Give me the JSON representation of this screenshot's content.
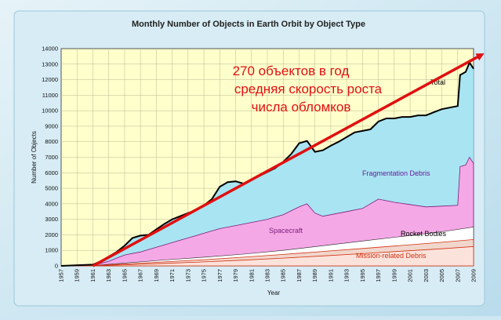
{
  "chart_data": {
    "type": "area",
    "title": "Monthly Number of Objects in Earth Orbit by Object Type",
    "xlabel": "Year",
    "ylabel": "Number of Objects",
    "xlim": [
      1957,
      2009
    ],
    "ylim": [
      0,
      14000
    ],
    "x_ticks": [
      "1957",
      "1959",
      "1961",
      "1963",
      "1965",
      "1967",
      "1969",
      "1971",
      "1973",
      "1975",
      "1977",
      "1979",
      "1981",
      "1983",
      "1985",
      "1987",
      "1989",
      "1991",
      "1993",
      "1995",
      "1997",
      "1999",
      "2001",
      "2003",
      "2005",
      "2007",
      "2009"
    ],
    "y_ticks": [
      "0",
      "1000",
      "2000",
      "3000",
      "4000",
      "5000",
      "6000",
      "7000",
      "8000",
      "9000",
      "10000",
      "11000",
      "12000",
      "13000",
      "14000"
    ],
    "grid": true,
    "colors": {
      "total": "#000000",
      "fragmentation": "#a8e4f2",
      "spacecraft": "#f4a8e6",
      "rocket_bodies": "#ffffff",
      "mission_debris": "#f1d6cc",
      "trend": "#e01010",
      "plot_bg": "#ffffcc"
    },
    "series": [
      {
        "name": "Total",
        "x": [
          1957,
          1961,
          1962,
          1963,
          1964,
          1965,
          1966,
          1967,
          1968,
          1969,
          1970,
          1971,
          1972,
          1973,
          1974,
          1975,
          1976,
          1977,
          1978,
          1979,
          1980,
          1981,
          1982,
          1983,
          1984,
          1985,
          1986,
          1987,
          1988,
          1989,
          1990,
          1991,
          1992,
          1993,
          1994,
          1995,
          1996,
          1997,
          1998,
          1999,
          2000,
          2001,
          2002,
          2003,
          2004,
          2005,
          2006,
          2007,
          2007.3,
          2008,
          2008.5,
          2009
        ],
        "values": [
          0,
          80,
          300,
          600,
          900,
          1300,
          1800,
          1950,
          2000,
          2350,
          2700,
          3000,
          3200,
          3400,
          3600,
          3900,
          4300,
          5100,
          5400,
          5450,
          5300,
          5550,
          5800,
          6050,
          6300,
          6700,
          7200,
          7900,
          8050,
          7350,
          7450,
          7750,
          8000,
          8300,
          8600,
          8700,
          8800,
          9300,
          9500,
          9500,
          9600,
          9600,
          9700,
          9700,
          9900,
          10100,
          10200,
          10300,
          12300,
          12500,
          13100,
          12700
        ]
      },
      {
        "name": "Fragmentation Debris",
        "x": [
          1957,
          1961,
          1963,
          1965,
          1967,
          1969,
          1971,
          1973,
          1975,
          1977,
          1979,
          1981,
          1983,
          1985,
          1987,
          1988,
          1989,
          1990,
          1993,
          1995,
          1997,
          1999,
          2001,
          2003,
          2005,
          2007,
          2007.3,
          2008,
          2008.5,
          2009
        ],
        "values": [
          0,
          30,
          300,
          700,
          900,
          1200,
          1500,
          1800,
          2100,
          2400,
          2600,
          2800,
          3000,
          3300,
          3800,
          4000,
          3400,
          3200,
          3500,
          3700,
          4300,
          4100,
          3950,
          3800,
          3850,
          3900,
          6400,
          6500,
          7000,
          6600
        ]
      },
      {
        "name": "Spacecraft",
        "x": [
          1957,
          1961,
          1965,
          1970,
          1975,
          1980,
          1985,
          1990,
          1995,
          2000,
          2005,
          2009
        ],
        "values": [
          0,
          20,
          180,
          380,
          560,
          760,
          1000,
          1300,
          1600,
          1900,
          2200,
          2500
        ]
      },
      {
        "name": "Rocket Bodies",
        "x": [
          1957,
          1961,
          1965,
          1970,
          1975,
          1980,
          1985,
          1990,
          1995,
          2000,
          2005,
          2009
        ],
        "values": [
          0,
          10,
          120,
          260,
          400,
          560,
          740,
          930,
          1120,
          1320,
          1520,
          1700
        ]
      },
      {
        "name": "Mission-related Debris",
        "x": [
          1957,
          1961,
          1965,
          1970,
          1975,
          1980,
          1985,
          1990,
          1995,
          2000,
          2005,
          2009
        ],
        "values": [
          0,
          5,
          70,
          160,
          260,
          370,
          500,
          640,
          790,
          950,
          1100,
          1250
        ]
      }
    ],
    "trend_line": {
      "x": [
        1961,
        2010
      ],
      "values": [
        0,
        13600
      ]
    },
    "annotation_lines": [
      "270 объектов в год",
      "средняя скорость роста",
      "числа обломков"
    ]
  }
}
